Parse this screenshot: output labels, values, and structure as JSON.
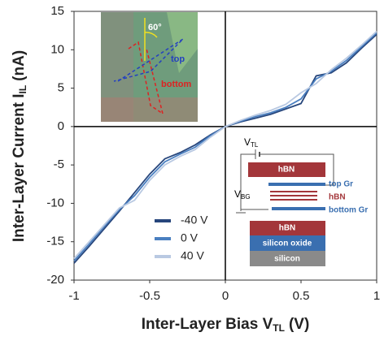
{
  "chart_data": {
    "type": "line",
    "x_label": [
      "Inter-Layer Bias V",
      "TL",
      "(V)"
    ],
    "y_label": [
      "Inter-Layer Current I",
      "IL",
      "(nA)"
    ],
    "x": [
      -1,
      -0.9,
      -0.8,
      -0.7,
      -0.6,
      -0.5,
      -0.4,
      -0.3,
      -0.2,
      -0.1,
      0,
      0.1,
      0.2,
      0.3,
      0.4,
      0.5,
      0.6,
      0.7,
      0.8,
      0.9,
      1
    ],
    "series": [
      {
        "name": "-40 V",
        "color": "#27467c",
        "values": [
          -17.8,
          -15.6,
          -13.3,
          -11.0,
          -8.6,
          -6.2,
          -4.2,
          -3.4,
          -2.4,
          -1.1,
          0,
          0.6,
          1.1,
          1.6,
          2.3,
          3.0,
          6.6,
          7.0,
          8.3,
          10.2,
          12.0
        ]
      },
      {
        "name": "0 V",
        "color": "#4a7fc0",
        "values": [
          -17.5,
          -15.3,
          -13.0,
          -10.8,
          -9.0,
          -6.6,
          -4.6,
          -3.6,
          -2.7,
          -1.2,
          0,
          0.7,
          1.3,
          1.8,
          2.5,
          3.6,
          6.2,
          7.2,
          8.6,
          10.4,
          12.2
        ]
      },
      {
        "name": "40 V",
        "color": "#b9c9e2",
        "values": [
          -17.2,
          -15.0,
          -12.8,
          -10.6,
          -9.6,
          -7.0,
          -5.0,
          -3.9,
          -3.0,
          -1.4,
          0,
          0.8,
          1.5,
          2.1,
          2.9,
          4.4,
          5.6,
          7.4,
          8.9,
          10.6,
          12.4
        ]
      }
    ],
    "xlim": [
      -1,
      1
    ],
    "xticks": [
      -1,
      -0.5,
      0,
      0.5,
      1
    ],
    "ylim": [
      -20,
      15
    ],
    "yticks": [
      -20,
      -15,
      -10,
      -5,
      0,
      5,
      10,
      15
    ],
    "legend": "lower-center",
    "annotations": {
      "angle": "60°",
      "top": "top",
      "bottom": "bottom",
      "v_tl": [
        "V",
        "TL"
      ],
      "v_bg": [
        "V",
        "BG"
      ],
      "hbn_top": "hBN",
      "top_gr": "top Gr",
      "hbn_mid": "hBN",
      "bottom_gr": "bottom Gr",
      "hbn_bottom": "hBN",
      "oxide": "silicon oxide",
      "silicon": "silicon"
    }
  }
}
